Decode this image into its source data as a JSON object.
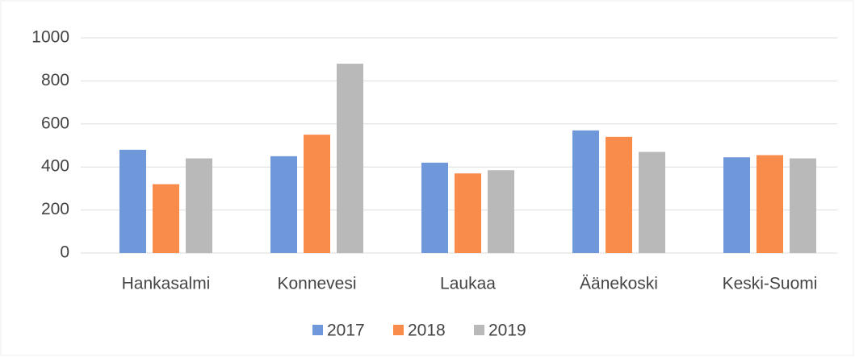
{
  "chart_data": {
    "type": "bar",
    "categories": [
      "Hankasalmi",
      "Konnevesi",
      "Laukaa",
      "Äänekoski",
      "Keski-Suomi"
    ],
    "series": [
      {
        "name": "2017",
        "color": "#6f98db",
        "values": [
          480,
          450,
          420,
          570,
          445
        ]
      },
      {
        "name": "2018",
        "color": "#f98b4b",
        "values": [
          320,
          550,
          370,
          540,
          455
        ]
      },
      {
        "name": "2019",
        "color": "#b9b9b9",
        "values": [
          440,
          880,
          385,
          470,
          440
        ]
      }
    ],
    "ylim": [
      0,
      1000
    ],
    "yticks": [
      0,
      200,
      400,
      600,
      800,
      1000
    ],
    "grid": true,
    "legend": "bottom"
  }
}
